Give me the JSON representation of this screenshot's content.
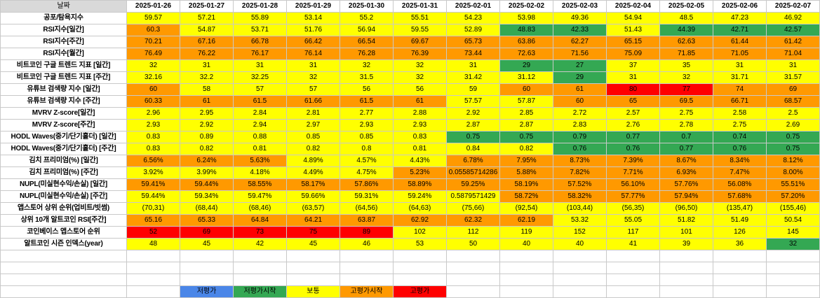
{
  "header": {
    "corner_label": "날짜",
    "dates": [
      "2025-01-26",
      "2025-01-27",
      "2025-01-28",
      "2025-01-29",
      "2025-01-30",
      "2025-01-31",
      "2025-02-01",
      "2025-02-02",
      "2025-02-03",
      "2025-02-04",
      "2025-02-05",
      "2025-02-06",
      "2025-02-07"
    ]
  },
  "rows": [
    {
      "label": "공포/탐욕지수",
      "values": [
        "59.57",
        "57.21",
        "55.89",
        "53.14",
        "55.2",
        "55.51",
        "54.23",
        "53.98",
        "49.36",
        "54.94",
        "48.5",
        "47.23",
        "46.92"
      ],
      "colors": "YYYYYYYYYYYYY"
    },
    {
      "label": "RSI지수[일간]",
      "values": [
        "60.3",
        "54.87",
        "53.71",
        "51.76",
        "56.94",
        "59.55",
        "52.89",
        "48.83",
        "42.33",
        "51.43",
        "44.39",
        "42.71",
        "42.57"
      ],
      "colors": "OYYYYYYGGYGGG"
    },
    {
      "label": "RSI지수[주간]",
      "values": [
        "70.21",
        "67.16",
        "66.78",
        "66.42",
        "66.54",
        "69.67",
        "65.73",
        "63.86",
        "62.27",
        "65.15",
        "62.63",
        "61.44",
        "61.42"
      ],
      "colors": "OOOOOOOOOOOOO"
    },
    {
      "label": "RSI지수[월간]",
      "values": [
        "76.49",
        "76.22",
        "76.17",
        "76.14",
        "76.28",
        "76.39",
        "73.44",
        "72.63",
        "71.56",
        "75.09",
        "71.85",
        "71.05",
        "71.04"
      ],
      "colors": "OOOOOOOOOOOOO"
    },
    {
      "label": "비트코인 구글 트렌드 지표 [일간]",
      "values": [
        "32",
        "31",
        "31",
        "31",
        "32",
        "32",
        "31",
        "29",
        "27",
        "37",
        "35",
        "31",
        "31"
      ],
      "colors": "YYYYYYYGGYYYY"
    },
    {
      "label": "비트코인 구글 트렌드 지표 [주간]",
      "values": [
        "32.16",
        "32.2",
        "32.25",
        "32",
        "31.5",
        "32",
        "31.42",
        "31.12",
        "29",
        "31",
        "32",
        "31.71",
        "31.57"
      ],
      "colors": "YYYYYYYYGYYYY"
    },
    {
      "label": "유튜브 검색량 지수 [일간]",
      "values": [
        "60",
        "58",
        "57",
        "57",
        "56",
        "56",
        "59",
        "60",
        "61",
        "80",
        "77",
        "74",
        "69"
      ],
      "colors": "OYYYYYYOORROO"
    },
    {
      "label": "유튜브 검색량 지수 [주간]",
      "values": [
        "60.33",
        "61",
        "61.5",
        "61.66",
        "61.5",
        "61",
        "57.57",
        "57.87",
        "60",
        "65",
        "69.5",
        "66.71",
        "68.57"
      ],
      "colors": "OOOOOOYYOOOOO"
    },
    {
      "label": "MVRV Z-score[일간]",
      "values": [
        "2.96",
        "2.95",
        "2.84",
        "2.81",
        "2.77",
        "2.88",
        "2.92",
        "2.85",
        "2.72",
        "2.57",
        "2.75",
        "2.58",
        "2.5"
      ],
      "colors": "YYYYYYYYYYYYY"
    },
    {
      "label": "MVRV Z-score[주간]",
      "values": [
        "2.93",
        "2.92",
        "2.94",
        "2.97",
        "2.93",
        "2.93",
        "2.87",
        "2.87",
        "2.83",
        "2.76",
        "2.78",
        "2.75",
        "2.69"
      ],
      "colors": "YYYYYYYYYYYYY"
    },
    {
      "label": "HODL Waves(중기/단기홀더) [일간]",
      "values": [
        "0.83",
        "0.89",
        "0.88",
        "0.85",
        "0.85",
        "0.83",
        "0.75",
        "0.75",
        "0.79",
        "0.77",
        "0.7",
        "0.74",
        "0.75"
      ],
      "colors": "YYYYYYGGGGGGG"
    },
    {
      "label": "HODL Waves(중기/단기홀더) [주간]",
      "values": [
        "0.83",
        "0.82",
        "0.81",
        "0.82",
        "0.8",
        "0.81",
        "0.84",
        "0.82",
        "0.76",
        "0.76",
        "0.77",
        "0.76",
        "0.75"
      ],
      "colors": "YYYYYYYYGGGGG"
    },
    {
      "label": "김치 프리미엄(%) [일간]",
      "values": [
        "6.56%",
        "6.24%",
        "5.63%",
        "4.89%",
        "4.57%",
        "4.43%",
        "6.78%",
        "7.95%",
        "8.73%",
        "7.39%",
        "8.67%",
        "8.34%",
        "8.12%"
      ],
      "colors": "OOOYYYOOOOOOO"
    },
    {
      "label": "김치 프리미엄(%) [주간]",
      "values": [
        "3.92%",
        "3.99%",
        "4.18%",
        "4.49%",
        "4.75%",
        "5.23%",
        "0.05585714286",
        "5.88%",
        "7.82%",
        "7.71%",
        "6.93%",
        "7.47%",
        "8.00%"
      ],
      "colors": "YYYYYOOOOOOOO"
    },
    {
      "label": "NUPL(미실현수익/손실) [일간]",
      "values": [
        "59.41%",
        "59.44%",
        "58.55%",
        "58.17%",
        "57.86%",
        "58.89%",
        "59.25%",
        "58.19%",
        "57.52%",
        "56.10%",
        "57.76%",
        "56.08%",
        "55.51%"
      ],
      "colors": "OOOOOOOOOOOOO"
    },
    {
      "label": "NUPL(미실현수익/손실) [주간]",
      "values": [
        "59.44%",
        "59.34%",
        "59.47%",
        "59.66%",
        "59.31%",
        "59.24%",
        "0.5879571429",
        "58.72%",
        "58.32%",
        "57.77%",
        "57.94%",
        "57.68%",
        "57.20%"
      ],
      "colors": "YYYYYYYOOOOOO"
    },
    {
      "label": "앱스토어 상위 순위(업비트/빗썸)",
      "values": [
        "(70,31)",
        "(68,44)",
        "(68,46)",
        "(63,57)",
        "(64,56)",
        "(64,63)",
        "(75,66)",
        "(92,54)",
        "(103,44)",
        "(56,35)",
        "(96,50)",
        "(135,47)",
        "(155,46)"
      ],
      "colors": "YYYYYYYYYYYYY"
    },
    {
      "label": "상위 10개 알트코인 RSI[주간]",
      "values": [
        "65.16",
        "65.33",
        "64.84",
        "64.21",
        "63.87",
        "62.92",
        "62.32",
        "62.19",
        "53.32",
        "55.05",
        "51.82",
        "51.49",
        "50.54"
      ],
      "colors": "OOOOOOOOYYYYY"
    },
    {
      "label": "코인베이스 앱스토어 순위",
      "values": [
        "52",
        "69",
        "73",
        "75",
        "89",
        "102",
        "112",
        "119",
        "152",
        "117",
        "101",
        "126",
        "145"
      ],
      "colors": "RRRRRYYYYYYYY"
    },
    {
      "label": "알트코인 시즌 인덱스(year)",
      "values": [
        "48",
        "45",
        "42",
        "45",
        "46",
        "53",
        "50",
        "40",
        "40",
        "41",
        "39",
        "36",
        "32"
      ],
      "colors": "YYYYYYYYYYYYG"
    }
  ],
  "legend": [
    {
      "label": "저평가",
      "color": "#4a86e8"
    },
    {
      "label": "저평가시작",
      "color": "#34a853"
    },
    {
      "label": "보통",
      "color": "#ffff00"
    },
    {
      "label": "고평가시작",
      "color": "#ff9900"
    },
    {
      "label": "고평가",
      "color": "#ff0000"
    }
  ]
}
